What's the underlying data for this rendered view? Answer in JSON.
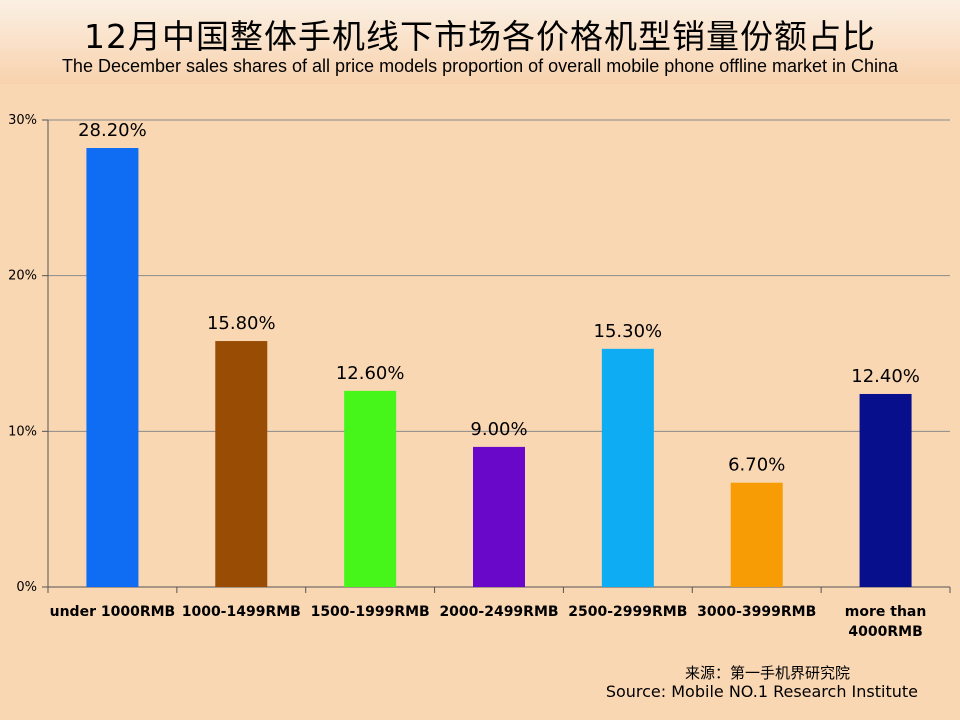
{
  "header": {
    "title_zh": "12月中国整体手机线下市场各价格机型销量份额占比",
    "title_en": "The December sales shares of all price models proportion of overall mobile phone offline market in China"
  },
  "source": {
    "zh": "来源：第一手机界研究院",
    "en": "Source: Mobile NO.1 Research Institute"
  },
  "chart_data": {
    "type": "bar",
    "title": "12月中国整体手机线下市场各价格机型销量份额占比",
    "subtitle": "The December sales shares of all price models proportion of overall mobile phone offline market in China",
    "xlabel": "",
    "ylabel": "",
    "categories": [
      "under 1000RMB",
      "1000-1499RMB",
      "1500-1999RMB",
      "2000-2499RMB",
      "2500-2999RMB",
      "3000-3999RMB",
      "more than 4000RMB"
    ],
    "values": [
      28.2,
      15.8,
      12.6,
      9.0,
      15.3,
      6.7,
      12.4
    ],
    "value_labels": [
      "28.20%",
      "15.80%",
      "12.60%",
      "9.00%",
      "15.30%",
      "6.70%",
      "12.40%"
    ],
    "colors": [
      "#0f6df3",
      "#994c04",
      "#46f51a",
      "#6a08c9",
      "#0eacf3",
      "#f79c04",
      "#080f8c"
    ],
    "ylim": [
      0,
      30
    ],
    "yticks": [
      0,
      10,
      20,
      30
    ],
    "ytick_labels": [
      "0%",
      "10%",
      "20%",
      "30%"
    ],
    "grid": true,
    "legend": "none"
  }
}
